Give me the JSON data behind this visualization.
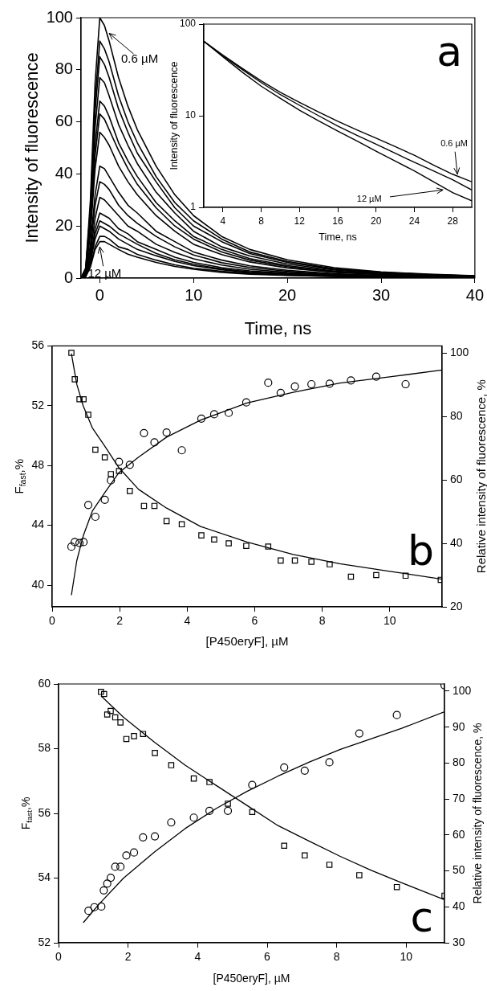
{
  "chart_data": [
    {
      "type": "line",
      "xlabel": "Time, ns",
      "ylabel": "Intensity of fluorescence",
      "xlim": [
        -2,
        40
      ],
      "xticks": [
        0,
        10,
        20,
        30,
        40
      ],
      "ylim": [
        0,
        100
      ],
      "yticks": [
        0,
        20,
        40,
        60,
        80,
        100
      ],
      "x": [
        -2,
        -1.5,
        -1,
        -0.5,
        0,
        0.5,
        1,
        2,
        3,
        4,
        6,
        8,
        10,
        13,
        16,
        20,
        25,
        30,
        35,
        40
      ],
      "annotations": [
        {
          "text": "0.6 µM",
          "x": 1,
          "y": 94
        },
        {
          "text": "12 µM",
          "x": 0,
          "y": 12
        }
      ],
      "series": [
        {
          "color": "#000000",
          "values": [
            0,
            4,
            30,
            75,
            100,
            97,
            91,
            77,
            66,
            57,
            43,
            32,
            24,
            16,
            11,
            7,
            4,
            2.4,
            1.5,
            0.9
          ]
        },
        {
          "color": "#000000",
          "values": [
            0,
            3.6,
            27,
            68,
            91,
            88,
            83,
            70,
            60,
            52,
            39,
            29,
            22,
            15,
            10,
            6.4,
            3.6,
            2.2,
            1.4,
            0.8
          ]
        },
        {
          "color": "#000000",
          "values": [
            0,
            3.4,
            26,
            64,
            85,
            82,
            77,
            65,
            56,
            48,
            37,
            27,
            20,
            14,
            9.4,
            6.0,
            3.4,
            2.0,
            1.3,
            0.8
          ]
        },
        {
          "color": "#000000",
          "values": [
            0,
            3.1,
            23,
            58,
            77,
            75,
            70,
            59,
            51,
            44,
            33,
            25,
            18,
            12,
            8.5,
            5.4,
            3.1,
            1.8,
            1.2,
            0.7
          ]
        },
        {
          "color": "#000000",
          "values": [
            0,
            2.7,
            20,
            51,
            68,
            66,
            62,
            52,
            45,
            39,
            29,
            22,
            16,
            11,
            7.5,
            4.8,
            2.7,
            1.6,
            1.0,
            0.6
          ]
        },
        {
          "color": "#000000",
          "values": [
            0,
            2.5,
            19,
            47,
            63,
            61,
            57,
            49,
            42,
            36,
            27,
            20,
            15,
            10,
            6.9,
            4.4,
            2.5,
            1.5,
            0.9,
            0.6
          ]
        },
        {
          "color": "#000000",
          "values": [
            0,
            2.2,
            17,
            42,
            56,
            54,
            51,
            43,
            37,
            32,
            24,
            18,
            13,
            9.0,
            6.2,
            3.9,
            2.2,
            1.3,
            0.8,
            0.5
          ]
        },
        {
          "color": "#000000",
          "values": [
            0,
            1.7,
            13,
            32,
            43,
            42,
            39,
            33,
            28,
            25,
            18,
            14,
            10,
            6.9,
            4.7,
            3.0,
            1.7,
            1.0,
            0.6,
            0.4
          ]
        },
        {
          "color": "#000000",
          "values": [
            0,
            1.5,
            11,
            28,
            37,
            36,
            34,
            28,
            24,
            21,
            16,
            12,
            8.9,
            5.9,
            4.1,
            2.6,
            1.5,
            0.9,
            0.6,
            0.3
          ]
        },
        {
          "color": "#000000",
          "values": [
            0,
            1.2,
            9.3,
            23,
            31,
            30,
            28,
            24,
            20,
            18,
            13,
            9.9,
            7.4,
            5.0,
            3.4,
            2.2,
            1.2,
            0.7,
            0.5,
            0.3
          ]
        },
        {
          "color": "#000000",
          "values": [
            0,
            1.0,
            7.5,
            19,
            25,
            24,
            23,
            19,
            17,
            14,
            11,
            8.0,
            6.0,
            4.0,
            2.8,
            1.8,
            1.0,
            0.6,
            0.4,
            0.2
          ]
        },
        {
          "color": "#000000",
          "values": [
            0,
            0.9,
            6.6,
            17,
            22,
            21,
            20,
            17,
            15,
            13,
            9.5,
            7.0,
            5.3,
            3.5,
            2.4,
            1.5,
            0.9,
            0.5,
            0.3,
            0.2
          ]
        },
        {
          "color": "#000000",
          "values": [
            0,
            0.8,
            6.0,
            15,
            20,
            19,
            18,
            15,
            13,
            11,
            8.6,
            6.4,
            4.8,
            3.2,
            2.2,
            1.4,
            0.8,
            0.5,
            0.3,
            0.2
          ]
        },
        {
          "color": "#000000",
          "values": [
            0,
            0.6,
            4.8,
            12,
            16,
            16,
            15,
            12,
            11,
            9.1,
            6.9,
            5.1,
            3.8,
            2.6,
            1.8,
            1.1,
            0.6,
            0.4,
            0.2,
            0.1
          ]
        },
        {
          "color": "#000000",
          "values": [
            0,
            0.6,
            4.2,
            11,
            14,
            14,
            13,
            11,
            9.2,
            8.0,
            6.0,
            4.5,
            3.4,
            2.2,
            1.5,
            1.0,
            0.6,
            0.3,
            0.2,
            0.1
          ]
        }
      ]
    },
    {
      "type": "line",
      "xlabel": "Time, ns",
      "ylabel": "Intensity of fluorescence",
      "log": "y",
      "xlim": [
        2,
        30
      ],
      "xticks": [
        4,
        8,
        12,
        16,
        20,
        24,
        28
      ],
      "ylim": [
        1,
        100
      ],
      "yticks": [
        1,
        10,
        100
      ],
      "x": [
        2,
        4,
        6,
        8,
        10,
        12,
        14,
        16,
        18,
        20,
        22,
        24,
        26,
        28,
        30
      ],
      "annotations": [
        "a",
        {
          "text": "0.6 µM",
          "x": 28.5,
          "y": 2.3
        },
        {
          "text": "12 µM",
          "x": 27,
          "y": 1.55
        }
      ],
      "series": [
        {
          "color": "#000000",
          "values": [
            65,
            46,
            33,
            24,
            18,
            14,
            11,
            8.7,
            7.0,
            5.7,
            4.6,
            3.7,
            2.9,
            2.3,
            1.9
          ]
        },
        {
          "color": "#000000",
          "values": [
            65,
            45,
            32,
            23,
            17,
            13,
            10,
            7.7,
            6.1,
            4.9,
            3.9,
            3.1,
            2.5,
            2.0,
            1.55
          ]
        },
        {
          "color": "#000000",
          "values": [
            65,
            44,
            30,
            21,
            15.5,
            11.5,
            8.8,
            6.8,
            5.3,
            4.1,
            3.2,
            2.5,
            1.9,
            1.45,
            1.18
          ]
        }
      ]
    },
    {
      "type": "scatter",
      "xlabel": "[P450eryF], µM",
      "ylabel": "F$_{fast}$,%",
      "y2label": "Relative intensity of fluorescence, %",
      "xlim": [
        0,
        11.55
      ],
      "xticks": [
        0,
        2,
        4,
        6,
        8,
        10
      ],
      "ylim": [
        38.55,
        56
      ],
      "yticks": [
        40,
        44,
        48,
        52,
        56
      ],
      "y2lim": [
        20,
        102.2
      ],
      "y2ticks": [
        20,
        40,
        60,
        80,
        100
      ],
      "annotations": [
        "b"
      ],
      "series": [
        {
          "type": "scatter",
          "marker": "circle",
          "color": "#000000",
          "x": [
            0.57,
            0.67,
            0.81,
            0.93,
            1.07,
            1.28,
            1.56,
            1.74,
            1.98,
            2.3,
            2.72,
            3.03,
            3.39,
            3.84,
            4.42,
            4.8,
            5.23,
            5.75,
            6.4,
            6.77,
            7.19,
            7.68,
            8.22,
            8.85,
            9.6,
            10.47
          ],
          "values": [
            42.57,
            42.88,
            42.82,
            42.88,
            45.36,
            44.57,
            45.71,
            47.01,
            48.25,
            48.05,
            50.17,
            49.55,
            50.21,
            49.02,
            51.14,
            51.43,
            51.52,
            52.22,
            53.54,
            52.86,
            53.29,
            53.44,
            53.48,
            53.69,
            53.95,
            53.44
          ]
        },
        {
          "type": "line",
          "color": "#000000",
          "x": [
            0.57,
            0.73,
            0.92,
            1.19,
            1.56,
            1.98,
            2.56,
            3.39,
            4.4,
            5.77,
            7.14,
            8.52,
            10.0,
            11.55
          ],
          "values": [
            39.33,
            41.64,
            43.29,
            44.95,
            46.19,
            47.53,
            48.56,
            49.9,
            51.04,
            52.18,
            52.9,
            53.52,
            53.93,
            54.39
          ]
        },
        {
          "type": "scatter",
          "marker": "square",
          "axis": "y2",
          "color": "#000000",
          "x": [
            0.57,
            0.67,
            0.81,
            0.93,
            1.07,
            1.28,
            1.56,
            1.74,
            1.98,
            2.3,
            2.72,
            3.03,
            3.39,
            3.84,
            4.42,
            4.8,
            5.23,
            5.75,
            6.4,
            6.77,
            7.19,
            7.68,
            8.22,
            8.85,
            9.6,
            10.47,
            11.51
          ],
          "values": [
            100,
            91.7,
            85.4,
            85.4,
            80.5,
            69.5,
            67.1,
            61.8,
            62.8,
            56.5,
            51.8,
            51.8,
            47.0,
            46.0,
            42.5,
            41.2,
            40.0,
            39.2,
            39.0,
            34.6,
            34.6,
            34.2,
            33.4,
            29.5,
            30.0,
            29.8,
            28.5
          ]
        },
        {
          "type": "line",
          "axis": "y2",
          "color": "#000000",
          "x": [
            0.57,
            0.73,
            0.92,
            1.19,
            1.56,
            1.98,
            2.56,
            3.39,
            4.4,
            5.77,
            7.14,
            8.52,
            10.0,
            11.55
          ],
          "values": [
            99.8,
            90.1,
            83.3,
            76.4,
            70.6,
            63.8,
            57.0,
            51.1,
            45.3,
            40.4,
            36.5,
            33.6,
            31.2,
            28.7
          ]
        }
      ]
    },
    {
      "type": "scatter",
      "xlabel": "[P450eryF], µM",
      "ylabel": "F$_{fast}$,%",
      "y2label": "Relative intensity of fluorescence, %",
      "xlim": [
        0,
        11.1
      ],
      "xticks": [
        0,
        2,
        4,
        6,
        8,
        10
      ],
      "ylim": [
        52,
        60
      ],
      "yticks": [
        52,
        54,
        56,
        58,
        60
      ],
      "y2lim": [
        30,
        102
      ],
      "y2ticks": [
        30,
        40,
        50,
        60,
        70,
        80,
        90,
        100
      ],
      "annotations": [
        "c"
      ],
      "series": [
        {
          "type": "scatter",
          "marker": "circle",
          "color": "#000000",
          "x": [
            0.86,
            1.03,
            1.23,
            1.3,
            1.4,
            1.5,
            1.63,
            1.78,
            1.95,
            2.17,
            2.43,
            2.77,
            3.24,
            3.89,
            4.34,
            4.87,
            5.57,
            6.49,
            7.08,
            7.79,
            8.65,
            9.73,
            11.1
          ],
          "values": [
            52.99,
            53.1,
            53.12,
            53.62,
            53.83,
            54.01,
            54.35,
            54.35,
            54.7,
            54.79,
            55.26,
            55.29,
            55.72,
            55.87,
            56.08,
            56.08,
            56.88,
            57.42,
            57.32,
            57.58,
            58.47,
            59.04,
            59.96
          ]
        },
        {
          "type": "line",
          "color": "#000000",
          "x": [
            0.71,
            1.16,
            1.87,
            2.76,
            3.64,
            4.53,
            5.42,
            6.31,
            7.2,
            8.09,
            8.98,
            9.87,
            11.1
          ],
          "values": [
            52.62,
            53.19,
            54.0,
            54.81,
            55.53,
            56.15,
            56.68,
            57.15,
            57.58,
            57.97,
            58.3,
            58.63,
            59.14
          ]
        },
        {
          "type": "scatter",
          "marker": "square",
          "axis": "y2",
          "color": "#000000",
          "x": [
            1.22,
            1.31,
            1.4,
            1.5,
            1.63,
            1.78,
            1.95,
            2.17,
            2.43,
            2.77,
            3.24,
            3.89,
            4.34,
            4.87,
            5.57,
            6.49,
            7.08,
            7.79,
            8.65,
            9.73,
            11.1
          ],
          "values": [
            99.8,
            99.2,
            93.5,
            94.5,
            92.7,
            91.3,
            86.7,
            87.5,
            88.1,
            82.8,
            79.4,
            75.7,
            74.7,
            68.7,
            66.4,
            57.0,
            54.3,
            51.7,
            48.8,
            45.5,
            43.1
          ]
        },
        {
          "type": "line",
          "axis": "y2",
          "color": "#000000",
          "x": [
            1.22,
            1.87,
            2.76,
            3.64,
            4.53,
            5.42,
            6.31,
            7.2,
            8.09,
            8.98,
            9.87,
            11.1
          ],
          "values": [
            98.7,
            92.7,
            85.8,
            79.4,
            73.8,
            68.2,
            62.6,
            58.3,
            54.1,
            50.2,
            46.7,
            42.0
          ]
        }
      ]
    }
  ]
}
